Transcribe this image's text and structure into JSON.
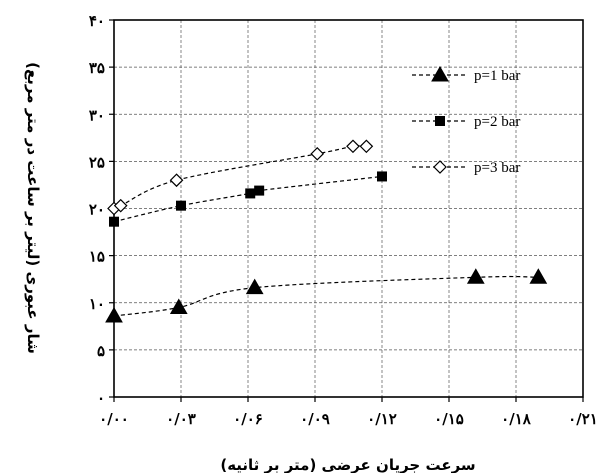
{
  "chart_data": {
    "type": "line",
    "xlabel": "سرعت جریان عرضی (متر بر ثانیه)",
    "ylabel": "شار عبوری (لیتر بر ساعت در متر مربع)",
    "xlim": [
      0,
      0.21
    ],
    "ylim": [
      0,
      40
    ],
    "x_ticks": [
      0,
      0.03,
      0.06,
      0.09,
      0.12,
      0.15,
      0.18,
      0.21
    ],
    "y_ticks": [
      0,
      5,
      10,
      15,
      20,
      25,
      30,
      35,
      40
    ],
    "x_tick_labels": [
      "۰/۰۰",
      "۰/۰۳",
      "۰/۰۶",
      "۰/۰۹",
      "۰/۱۲",
      "۰/۱۵",
      "۰/۱۸",
      "۰/۲۱"
    ],
    "y_tick_labels": [
      "۰",
      "۵",
      "۱۰",
      "۱۵",
      "۲۰",
      "۲۵",
      "۳۰",
      "۳۵",
      "۴۰"
    ],
    "grid": true,
    "legend_position": "top-right",
    "series": [
      {
        "name": "p=1 bar",
        "marker": "triangle",
        "color": "#000000",
        "x": [
          0.0,
          0.029,
          0.063,
          0.162,
          0.19
        ],
        "y": [
          8.6,
          9.5,
          11.6,
          12.7,
          12.7
        ]
      },
      {
        "name": "p=2 bar",
        "marker": "square",
        "color": "#000000",
        "x": [
          0.0,
          0.03,
          0.061,
          0.065,
          0.12
        ],
        "y": [
          18.6,
          20.3,
          21.6,
          21.9,
          23.4
        ]
      },
      {
        "name": "p=3 bar",
        "marker": "diamond-open",
        "color": "#000000",
        "x": [
          0.0,
          0.003,
          0.028,
          0.091,
          0.107,
          0.113
        ],
        "y": [
          20.0,
          20.3,
          23.0,
          25.8,
          26.6,
          26.6
        ]
      }
    ]
  }
}
